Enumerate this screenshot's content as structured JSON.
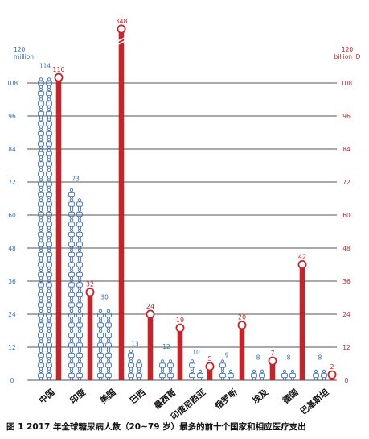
{
  "caption": "图 1 2017 年全球糖尿病人数（20~79 岁）最多的前十个国家和相应医疗支出",
  "colors": {
    "people": "#3a6fb4",
    "spending": "#c0272d",
    "grid": "#1a1a1a",
    "axis_text_left": "#3a6fb4",
    "axis_text_right": "#c0272d"
  },
  "chart_data": {
    "type": "bar",
    "categories": [
      "中国",
      "印度",
      "美国",
      "巴西",
      "墨西哥",
      "印度尼西亚",
      "俄罗斯",
      "埃及",
      "德国",
      "巴基斯坦"
    ],
    "series": [
      {
        "values": [
          114,
          73,
          30,
          13,
          12,
          10,
          9,
          8,
          8,
          8
        ],
        "marker": "person-icon-stack",
        "labels": [
          "114",
          "73",
          "30",
          "13",
          "12",
          "10",
          "9",
          "8",
          "8",
          "8"
        ]
      },
      {
        "values": [
          110,
          32,
          348,
          24,
          19,
          5,
          20,
          7,
          42,
          2
        ],
        "marker": "pin-bar",
        "labels": [
          "110",
          "32",
          "348",
          "24",
          "19",
          "5",
          "20",
          "7",
          "42",
          "2"
        ]
      }
    ],
    "ylabel_left": "120\nmillion",
    "ylabel_right": "120\nbillion ID",
    "y_ticks": [
      0,
      12,
      24,
      36,
      48,
      60,
      72,
      84,
      96,
      108
    ],
    "y_tick_labels_left": [
      "0",
      "12",
      "24",
      "36",
      "48",
      "60",
      "72",
      "84",
      "96",
      "108"
    ],
    "y_tick_labels_right": [
      "0",
      "12",
      "24",
      "36",
      "48",
      "60",
      "72",
      "84",
      "96",
      "108"
    ],
    "ylim": [
      0,
      120
    ],
    "axis_break": {
      "series": 1,
      "category": "美国"
    },
    "grid": true
  }
}
